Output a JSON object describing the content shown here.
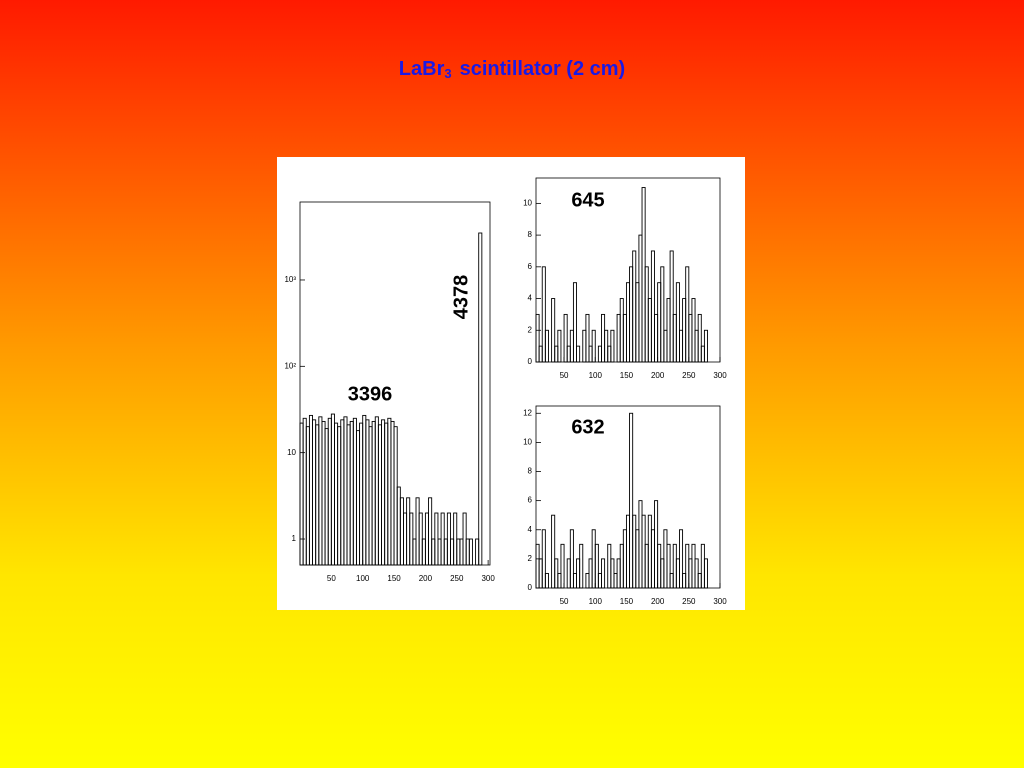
{
  "slide": {
    "title": {
      "main": "LaBr",
      "subscript": "3",
      "rest": "scintillator  (2 cm)"
    }
  },
  "chart_data": [
    {
      "type": "histogram",
      "log_y": true,
      "color": "#000000",
      "bins": [
        0,
        5,
        10,
        15,
        20,
        25,
        30,
        35,
        40,
        45,
        50,
        55,
        60,
        65,
        70,
        75,
        80,
        85,
        90,
        95,
        100,
        105,
        110,
        115,
        120,
        125,
        130,
        135,
        140,
        145,
        150,
        155,
        160,
        165,
        170,
        175,
        180,
        185,
        190,
        195,
        200,
        205,
        210,
        215,
        220,
        225,
        230,
        235,
        240,
        245,
        250,
        255,
        260,
        265,
        270,
        275,
        280,
        285,
        290,
        295,
        300
      ],
      "values": [
        22,
        25,
        20,
        27,
        24,
        21,
        26,
        23,
        19,
        25,
        28,
        22,
        20,
        24,
        26,
        21,
        23,
        25,
        18,
        22,
        27,
        24,
        20,
        23,
        26,
        21,
        24,
        22,
        25,
        23,
        20,
        4,
        3,
        2,
        3,
        2,
        1,
        3,
        2,
        1,
        2,
        3,
        1,
        2,
        1,
        2,
        1,
        2,
        1,
        2,
        1,
        1,
        2,
        1,
        1,
        0,
        1,
        3500,
        0,
        0
      ],
      "xlim": [
        0,
        303
      ],
      "ylim": [
        0.5,
        8000
      ],
      "xticks": [
        50,
        100,
        150,
        200,
        250,
        300
      ],
      "yticks": [
        1,
        10,
        {
          "value": 100,
          "label": "10²"
        },
        {
          "value": 1000,
          "label": "10³"
        }
      ],
      "annotations": [
        "3396",
        "4378"
      ]
    },
    {
      "type": "histogram",
      "log_y": false,
      "color": "#000000",
      "bins": [
        5,
        10,
        15,
        20,
        25,
        30,
        35,
        40,
        45,
        50,
        55,
        60,
        65,
        70,
        75,
        80,
        85,
        90,
        95,
        100,
        105,
        110,
        115,
        120,
        125,
        130,
        135,
        140,
        145,
        150,
        155,
        160,
        165,
        170,
        175,
        180,
        185,
        190,
        195,
        200,
        205,
        210,
        215,
        220,
        225,
        230,
        235,
        240,
        245,
        250,
        255,
        260,
        265,
        270,
        275,
        280,
        285
      ],
      "values": [
        3,
        1,
        6,
        2,
        0,
        4,
        1,
        2,
        0,
        3,
        1,
        2,
        5,
        1,
        0,
        2,
        3,
        1,
        2,
        0,
        1,
        3,
        2,
        1,
        2,
        0,
        3,
        4,
        3,
        5,
        6,
        7,
        5,
        8,
        11,
        6,
        4,
        7,
        3,
        5,
        6,
        2,
        4,
        7,
        3,
        5,
        2,
        4,
        6,
        3,
        4,
        2,
        3,
        1,
        2,
        0
      ],
      "xlim": [
        5,
        300
      ],
      "ylim": [
        0,
        11.6
      ],
      "xticks": [
        50,
        100,
        150,
        200,
        250,
        300
      ],
      "yticks": [
        0,
        2,
        4,
        6,
        8,
        10
      ],
      "annotations": [
        "645"
      ]
    },
    {
      "type": "histogram",
      "log_y": false,
      "color": "#000000",
      "bins": [
        5,
        10,
        15,
        20,
        25,
        30,
        35,
        40,
        45,
        50,
        55,
        60,
        65,
        70,
        75,
        80,
        85,
        90,
        95,
        100,
        105,
        110,
        115,
        120,
        125,
        130,
        135,
        140,
        145,
        150,
        155,
        160,
        165,
        170,
        175,
        180,
        185,
        190,
        195,
        200,
        205,
        210,
        215,
        220,
        225,
        230,
        235,
        240,
        245,
        250,
        255,
        260,
        265,
        270,
        275,
        280,
        285
      ],
      "values": [
        3,
        2,
        4,
        1,
        0,
        5,
        2,
        1,
        3,
        0,
        2,
        4,
        1,
        2,
        3,
        0,
        1,
        2,
        4,
        3,
        1,
        2,
        0,
        3,
        2,
        1,
        2,
        3,
        4,
        5,
        12,
        5,
        4,
        6,
        5,
        3,
        5,
        4,
        6,
        3,
        2,
        4,
        3,
        1,
        3,
        2,
        4,
        1,
        3,
        2,
        3,
        2,
        1,
        3,
        2,
        0
      ],
      "xlim": [
        5,
        300
      ],
      "ylim": [
        0,
        12.5
      ],
      "xticks": [
        50,
        100,
        150,
        200,
        250,
        300
      ],
      "yticks": [
        0,
        2,
        4,
        6,
        8,
        10,
        12
      ],
      "annotations": [
        "632"
      ]
    }
  ]
}
